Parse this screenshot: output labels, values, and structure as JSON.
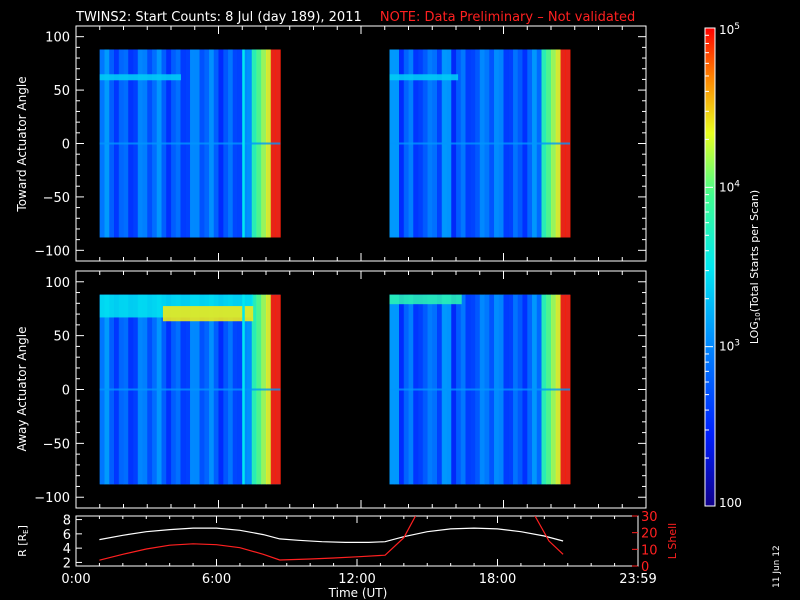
{
  "title": {
    "main": "TWINS2: Start Counts:  8 Jul (day 189), 2011",
    "note": "NOTE: Data Preliminary – Not validated",
    "note_color": "#ff2020"
  },
  "date_stamp": "11 Jun 12",
  "chart_data": [
    {
      "type": "heatmap",
      "name": "toward",
      "ylabel": "Toward Actuator Angle",
      "ylim": [
        -110,
        110
      ],
      "yticks": [
        100,
        50,
        0,
        -50,
        -100
      ],
      "xlim_hours": [
        0,
        24
      ],
      "coverage_hours": [
        [
          1.0,
          8.6
        ],
        [
          13.2,
          20.8
        ]
      ],
      "angle_range": [
        -88,
        88
      ],
      "color_scale": "log10",
      "grid": false
    },
    {
      "type": "heatmap",
      "name": "away",
      "ylabel": "Away Actuator Angle",
      "ylim": [
        -110,
        110
      ],
      "yticks": [
        100,
        50,
        0,
        -50,
        -100
      ],
      "xlim_hours": [
        0,
        24
      ],
      "coverage_hours": [
        [
          1.0,
          8.6
        ],
        [
          13.2,
          20.8
        ]
      ],
      "angle_range": [
        -88,
        88
      ],
      "color_scale": "log10",
      "grid": false
    },
    {
      "type": "line",
      "name": "orbit",
      "xlabel": "Time (UT)",
      "xtick_labels": [
        "0:00",
        "6:00",
        "12:00",
        "18:00",
        "23:59"
      ],
      "xtick_hours": [
        0,
        6,
        12,
        18,
        24
      ],
      "ylabel_left": "R [R",
      "ylabel_left_sub": "E",
      "ylabel_left_end": "]",
      "ylim_left": [
        1.5,
        8.5
      ],
      "yticks_left": [
        2,
        4,
        6,
        8
      ],
      "ylabel_right": "L Shell",
      "ylim_right": [
        0,
        30
      ],
      "yticks_right": [
        0,
        10,
        20,
        30
      ],
      "series": [
        {
          "axis": "left",
          "color": "#ffffff",
          "x": [
            1.0,
            2.0,
            3.0,
            4.0,
            5.0,
            6.0,
            7.0,
            8.0,
            8.7,
            9.5,
            10.5,
            11.5,
            12.5,
            13.2,
            14.0,
            15.0,
            16.0,
            17.0,
            18.0,
            19.0,
            20.0,
            20.8
          ],
          "y": [
            5.2,
            5.8,
            6.3,
            6.6,
            6.8,
            6.8,
            6.5,
            5.9,
            5.3,
            5.1,
            4.9,
            4.8,
            4.8,
            4.9,
            5.6,
            6.3,
            6.7,
            6.8,
            6.7,
            6.3,
            5.7,
            5.0
          ]
        },
        {
          "axis": "right",
          "color": "#ff2020",
          "x": [
            1.0,
            2.0,
            3.0,
            4.0,
            5.0,
            6.0,
            7.0,
            8.0,
            8.7,
            10.0,
            11.0,
            12.0,
            13.2,
            14.0,
            14.5
          ],
          "y": [
            3.5,
            7.0,
            10.2,
            12.5,
            13.3,
            12.8,
            11.0,
            7.0,
            3.6,
            4.2,
            4.8,
            5.5,
            6.5,
            17.0,
            30.0
          ]
        },
        {
          "axis": "right",
          "color": "#ff2020",
          "x": [
            19.6,
            20.2,
            20.8
          ],
          "y": [
            30.0,
            15.0,
            7.0
          ]
        }
      ]
    }
  ],
  "colorbar": {
    "label": "LOG",
    "label_sub": "10",
    "label_end": "(Total Starts per Scan)",
    "ticks": [
      {
        "base": "10",
        "exp": "5",
        "value": 100000
      },
      {
        "base": "10",
        "exp": "4",
        "value": 10000
      },
      {
        "base": "10",
        "exp": "3",
        "value": 1000
      },
      {
        "base": "100",
        "exp": "",
        "value": 100
      }
    ],
    "range": [
      100,
      100000
    ]
  }
}
